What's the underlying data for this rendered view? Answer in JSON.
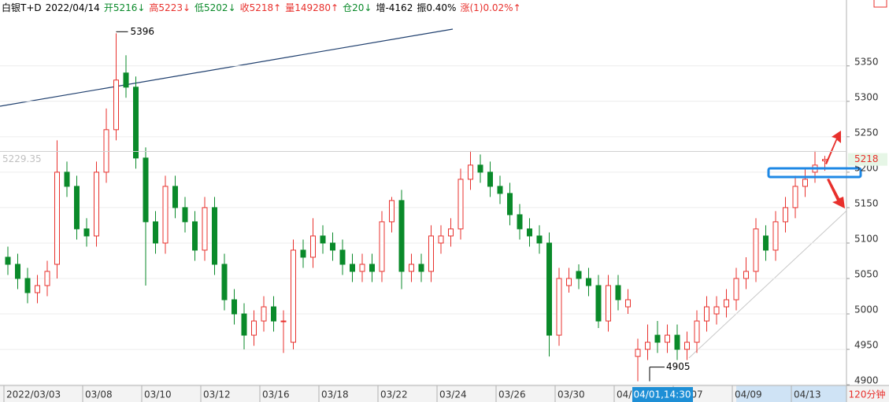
{
  "chart_data": {
    "type": "candlestick",
    "header": [
      {
        "text": "白银T+D",
        "color": "#000000"
      },
      {
        "text": "2022/04/14",
        "color": "#000000"
      },
      {
        "text": "开5216↓",
        "color": "#0a8a2a"
      },
      {
        "text": "高5223↓",
        "color": "#e8302c"
      },
      {
        "text": "低5202↓",
        "color": "#0a8a2a"
      },
      {
        "text": "收5218↑",
        "color": "#e8302c"
      },
      {
        "text": "量149280↑",
        "color": "#e8302c"
      },
      {
        "text": "仓20↓",
        "color": "#0a8a2a"
      },
      {
        "text": "增-4162",
        "color": "#000000"
      },
      {
        "text": "振0.40%",
        "color": "#000000"
      },
      {
        "text": "涨(1)0.02%↑",
        "color": "#e8302c"
      }
    ],
    "period": "120分钟",
    "cursor_time": "04/01,14:30",
    "cursor_value": 5229.35,
    "last_price": 5218,
    "max_price": 5396,
    "min_price": 4905,
    "up_color": "#e8302c",
    "down_color": "#0a8a2a",
    "ylim": [
      4899,
      5443
    ],
    "yticks": [
      4900,
      4950,
      5000,
      5050,
      5100,
      5150,
      5200,
      5250,
      5300,
      5350
    ],
    "grid": true,
    "categories": [
      "2022/03/03",
      null,
      null,
      null,
      null,
      null,
      null,
      null,
      "03/08",
      null,
      null,
      null,
      null,
      null,
      "03/10",
      null,
      null,
      null,
      null,
      null,
      "03/12",
      null,
      null,
      null,
      null,
      null,
      "03/16",
      null,
      null,
      null,
      null,
      null,
      "03/18",
      null,
      null,
      null,
      null,
      null,
      "03/22",
      null,
      null,
      null,
      null,
      null,
      "03/24",
      null,
      null,
      null,
      null,
      null,
      "03/26",
      null,
      null,
      null,
      null,
      null,
      "03/30",
      null,
      null,
      null,
      null,
      null,
      "04/01",
      null,
      null,
      null,
      null,
      null,
      "04/07",
      null,
      null,
      null,
      null,
      null,
      "04/09",
      null,
      null,
      null,
      null,
      null,
      "04/13",
      null,
      null,
      null
    ],
    "open": [
      5080,
      5070,
      5050,
      5030,
      5040,
      5070,
      5200,
      5180,
      5120,
      5110,
      5200,
      5260,
      5340,
      5320,
      5220,
      5130,
      5100,
      5180,
      5150,
      5130,
      5090,
      5150,
      5070,
      5020,
      5000,
      4970,
      4990,
      5010,
      4990,
      4960,
      5090,
      5080,
      5110,
      5100,
      5090,
      5070,
      5060,
      5070,
      5060,
      5130,
      5160,
      5060,
      5070,
      5060,
      5100,
      5110,
      5120,
      5190,
      5210,
      5200,
      5180,
      5170,
      5140,
      5120,
      5110,
      5100,
      4970,
      5040,
      5060,
      5050,
      5040,
      4990,
      5040,
      5010,
      4940,
      4950,
      4970,
      4960,
      4970,
      4950,
      4960,
      4990,
      5000,
      5010,
      5020,
      5050,
      5060,
      5110,
      5090,
      5130,
      5150,
      5180,
      5200,
      5216
    ],
    "high": [
      5095,
      5085,
      5065,
      5055,
      5075,
      5245,
      5215,
      5195,
      5135,
      5215,
      5290,
      5396,
      5365,
      5335,
      5235,
      5145,
      5195,
      5195,
      5165,
      5145,
      5165,
      5165,
      5085,
      5035,
      5015,
      5005,
      5025,
      5025,
      5005,
      5105,
      5105,
      5135,
      5125,
      5115,
      5105,
      5085,
      5085,
      5085,
      5145,
      5165,
      5175,
      5085,
      5085,
      5125,
      5125,
      5135,
      5205,
      5230,
      5225,
      5215,
      5195,
      5185,
      5155,
      5135,
      5125,
      5115,
      5065,
      5065,
      5070,
      5065,
      5055,
      5055,
      5055,
      5035,
      4965,
      4985,
      4990,
      4985,
      4985,
      4975,
      5005,
      5025,
      5025,
      5035,
      5065,
      5080,
      5135,
      5125,
      5145,
      5165,
      5195,
      5205,
      5230,
      5223
    ],
    "low": [
      5055,
      5035,
      5015,
      5015,
      5025,
      5050,
      5165,
      5105,
      5095,
      5095,
      5185,
      5245,
      5305,
      5205,
      5040,
      5085,
      5085,
      5135,
      5115,
      5075,
      5075,
      5055,
      5005,
      4985,
      4950,
      4955,
      4975,
      4975,
      4945,
      4950,
      5065,
      5065,
      5085,
      5075,
      5055,
      5045,
      5045,
      5045,
      5045,
      5115,
      5035,
      5045,
      5045,
      5045,
      5085,
      5095,
      5105,
      5175,
      5185,
      5165,
      5155,
      5125,
      5105,
      5095,
      5085,
      4940,
      4955,
      5030,
      5035,
      5025,
      4980,
      4975,
      5005,
      5000,
      4905,
      4935,
      4945,
      4945,
      4935,
      4935,
      4945,
      4975,
      4985,
      4995,
      5005,
      5035,
      5045,
      5075,
      5075,
      5115,
      5135,
      5165,
      5185,
      5202
    ],
    "close": [
      5070,
      5050,
      5030,
      5040,
      5060,
      5200,
      5180,
      5120,
      5110,
      5200,
      5260,
      5330,
      5320,
      5220,
      5130,
      5100,
      5180,
      5150,
      5130,
      5090,
      5150,
      5070,
      5020,
      5000,
      4970,
      4990,
      5010,
      4990,
      4990,
      5090,
      5080,
      5110,
      5100,
      5090,
      5070,
      5060,
      5070,
      5060,
      5130,
      5160,
      5060,
      5070,
      5060,
      5110,
      5110,
      5120,
      5190,
      5210,
      5200,
      5180,
      5170,
      5140,
      5120,
      5110,
      5100,
      4970,
      5050,
      5050,
      5050,
      5040,
      4990,
      5040,
      5020,
      5020,
      4950,
      4960,
      4960,
      4970,
      4950,
      4960,
      4990,
      5010,
      5010,
      5020,
      5050,
      5060,
      5120,
      5090,
      5130,
      5150,
      5180,
      5190,
      5210,
      5218
    ]
  }
}
